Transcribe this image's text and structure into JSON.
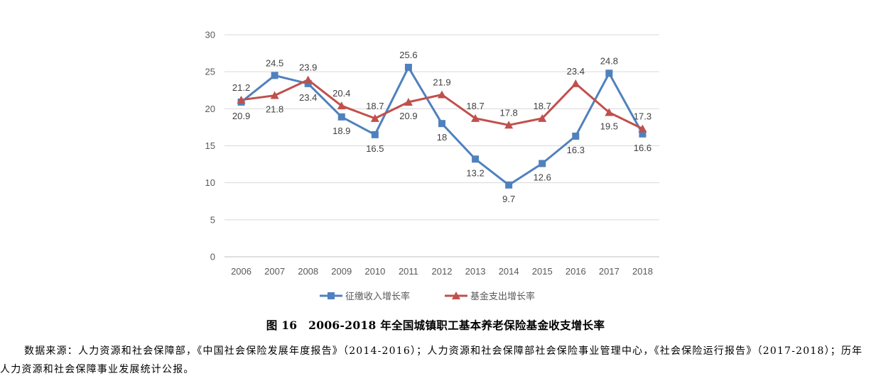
{
  "chart_data": {
    "type": "line",
    "title": "",
    "xlabel": "",
    "ylabel": "",
    "ylim": [
      0,
      30
    ],
    "yticks": [
      0,
      5,
      10,
      15,
      20,
      25,
      30
    ],
    "grid": true,
    "legend_position": "bottom",
    "categories": [
      "2006",
      "2007",
      "2008",
      "2009",
      "2010",
      "2011",
      "2012",
      "2013",
      "2014",
      "2015",
      "2016",
      "2017",
      "2018"
    ],
    "series": [
      {
        "name": "征缴收入增长率",
        "color": "#4F81BD",
        "marker": "square",
        "values": [
          20.9,
          24.5,
          23.4,
          18.9,
          16.5,
          25.6,
          18,
          13.2,
          9.7,
          12.6,
          16.3,
          24.8,
          16.6
        ],
        "labels": [
          "20.9",
          "24.5",
          "23.4",
          "18.9",
          "16.5",
          "25.6",
          "18",
          "13.2",
          "9.7",
          "12.6",
          "16.3",
          "24.8",
          "16.6"
        ]
      },
      {
        "name": "基金支出增长率",
        "color": "#C0504D",
        "marker": "triangle",
        "values": [
          21.2,
          21.8,
          23.9,
          20.4,
          18.7,
          20.9,
          21.9,
          18.7,
          17.8,
          18.7,
          23.4,
          19.5,
          17.3
        ],
        "labels": [
          "21.2",
          "21.8",
          "23.9",
          "20.4",
          "18.7",
          "20.9",
          "21.9",
          "18.7",
          "17.8",
          "18.7",
          "23.4",
          "19.5",
          "17.3"
        ]
      }
    ]
  },
  "caption": "图 16　2006-2018 年全国城镇职工基本养老保险基金收支增长率",
  "source_note": "数据来源：人力资源和社会保障部，《中国社会保险发展年度报告》（2014-2016）；人力资源和社会保障部社会保险事业管理中心，《社会保险运行报告》（2017-2018）；历年人力资源和社会保障事业发展统计公报。"
}
